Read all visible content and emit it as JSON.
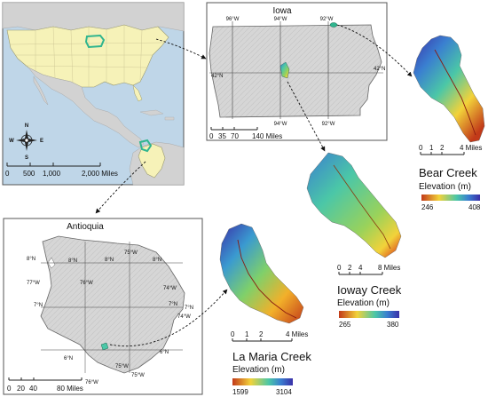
{
  "world_panel": {
    "scale_ticks": [
      "0",
      "500",
      "1,000",
      "2,000 Miles"
    ],
    "compass": {
      "n": "N",
      "s": "S",
      "e": "E",
      "w": "W"
    }
  },
  "iowa_panel": {
    "title": "Iowa",
    "lon_top": [
      "96°W",
      "94°W",
      "92°W"
    ],
    "lon_bottom": [
      "94°W",
      "92°W"
    ],
    "lat_left": "42°N",
    "lat_right": "42°N",
    "scale_ticks": [
      "0",
      "35",
      "70",
      "140 Miles"
    ]
  },
  "antioquia_panel": {
    "title": "Antioquia",
    "lat_labels": [
      "8°N",
      "8°N",
      "7°N",
      "7°N",
      "6°N",
      "6°N"
    ],
    "lon_labels": [
      "77°W",
      "76°W",
      "75°W",
      "74°W",
      "74°W",
      "75°W",
      "76°W",
      "75°W",
      "8°N",
      "8°N",
      "7°N"
    ],
    "scale_ticks": [
      "0",
      "20",
      "40",
      "80 Miles"
    ]
  },
  "bear_creek": {
    "name": "Bear Creek",
    "legend_title": "Elevation (m)",
    "min": "246",
    "max": "408",
    "scale_ticks": [
      "0",
      "1",
      "2",
      "4 Miles"
    ]
  },
  "ioway_creek": {
    "name": "Ioway Creek",
    "legend_title": "Elevation (m)",
    "min": "265",
    "max": "380",
    "scale_ticks": [
      "0",
      "2",
      "4",
      "8 Miles"
    ]
  },
  "la_maria_creek": {
    "name": "La Maria Creek",
    "legend_title": "Elevation (m)",
    "min": "1599",
    "max": "3104",
    "scale_ticks": [
      "0",
      "1",
      "2",
      "4 Miles"
    ]
  },
  "colors": {
    "land_highlight": "#f6f2b8",
    "land_other": "#d2d2d2",
    "water": "#bfd6e8",
    "study_marker": "#2fb58e",
    "elev_low": "#c23a19",
    "elev_mid": "#f2d23a",
    "elev_mid2": "#4bc7a7",
    "elev_high": "#3a2fa8"
  }
}
